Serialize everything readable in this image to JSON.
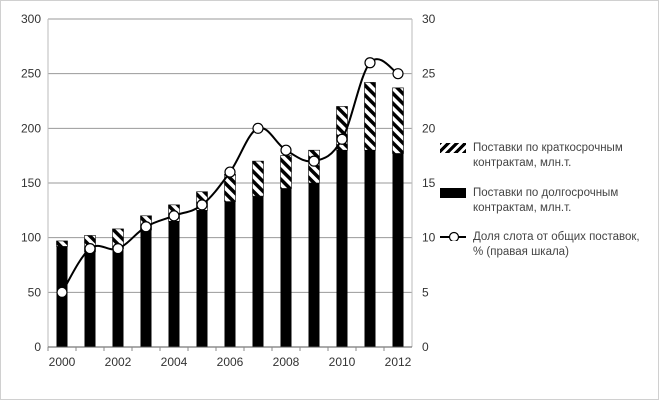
{
  "chart_data": {
    "type": "bar",
    "stacked": true,
    "categories": [
      "2000",
      "2001",
      "2002",
      "2003",
      "2004",
      "2005",
      "2006",
      "2007",
      "2008",
      "2009",
      "2010",
      "2011",
      "2012"
    ],
    "x_tick_labels": [
      "2000",
      "2002",
      "2004",
      "2006",
      "2008",
      "2010",
      "2012"
    ],
    "series": [
      {
        "name": "Поставки по долгосрочным контрактам, млн.т.",
        "axis": "left",
        "kind": "bar",
        "pattern": "solid",
        "color": "#000000",
        "values": [
          92,
          87,
          90,
          107,
          115,
          125,
          133,
          138,
          145,
          150,
          180,
          180,
          177
        ]
      },
      {
        "name": "Поставки по краткосрочным контрактам, млн.т.",
        "axis": "left",
        "kind": "bar",
        "pattern": "hatched",
        "color": "#000000",
        "values": [
          5,
          15,
          18,
          13,
          15,
          17,
          25,
          32,
          30,
          30,
          40,
          62,
          60
        ]
      },
      {
        "name": "Доля слота от общих поставок, % (правая шкала)",
        "axis": "right",
        "kind": "line",
        "color": "#000000",
        "values": [
          5,
          9,
          9,
          11,
          12,
          13,
          16,
          20,
          18,
          17,
          19,
          26,
          25
        ]
      }
    ],
    "y_left": {
      "lim": [
        0,
        300
      ],
      "ticks": [
        0,
        50,
        100,
        150,
        200,
        250,
        300
      ]
    },
    "y_right": {
      "lim": [
        0,
        30
      ],
      "ticks": [
        0,
        5,
        10,
        15,
        20,
        25,
        30
      ]
    },
    "grid": true,
    "legend_position": "right",
    "title": "",
    "xlabel": "",
    "ylabel": ""
  },
  "legend": [
    {
      "line1": "Поставки по краткосрочным",
      "line2": "контрактам, млн.т."
    },
    {
      "line1": "Поставки по долгосрочным",
      "line2": "контрактам, млн.т."
    },
    {
      "line1": "Доля слота от общих поставок,",
      "line2": "% (правая шкала)"
    }
  ]
}
